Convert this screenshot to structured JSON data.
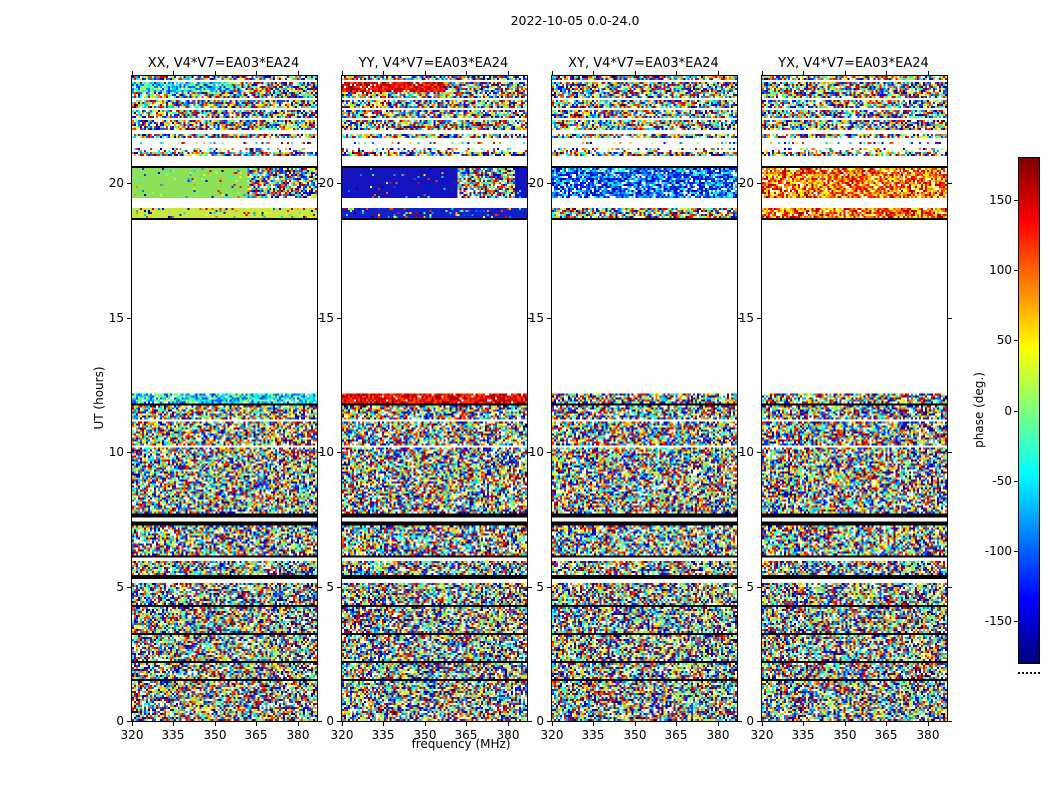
{
  "figure": {
    "title": "2022-10-05 0.0-24.0"
  },
  "chart_data": {
    "type": "heatmap",
    "panels": [
      {
        "title": "XX, V4*V7=EA03*EA24"
      },
      {
        "title": "YY, V4*V7=EA03*EA24"
      },
      {
        "title": "XY, V4*V7=EA03*EA24"
      },
      {
        "title": "YX, V4*V7=EA03*EA24"
      }
    ],
    "x": {
      "label": "frequency (MHz)",
      "range": [
        320,
        387
      ],
      "ticks": [
        320,
        335,
        350,
        365,
        380
      ]
    },
    "y": {
      "label": "UT (hours)",
      "range": [
        0,
        24
      ],
      "ticks": [
        0,
        5,
        10,
        15,
        20
      ]
    },
    "colorbar": {
      "label": "phase (deg.)",
      "range": [
        -180,
        180
      ],
      "ticks": [
        150,
        100,
        50,
        0,
        -50,
        -100,
        -150
      ],
      "colormap": "jet"
    },
    "grid": false,
    "bands": [
      {
        "t0": 0.0,
        "t1": 1.45,
        "mode": "noise"
      },
      {
        "t0": 1.45,
        "t1": 1.53,
        "mode": "black"
      },
      {
        "t0": 1.53,
        "t1": 2.15,
        "mode": "noise"
      },
      {
        "t0": 2.15,
        "t1": 2.23,
        "mode": "black"
      },
      {
        "t0": 2.23,
        "t1": 3.2,
        "mode": "noise"
      },
      {
        "t0": 3.2,
        "t1": 3.28,
        "mode": "black"
      },
      {
        "t0": 3.28,
        "t1": 4.22,
        "mode": "noise"
      },
      {
        "t0": 4.22,
        "t1": 4.3,
        "mode": "black"
      },
      {
        "t0": 4.3,
        "t1": 5.1,
        "mode": "noise"
      },
      {
        "t0": 5.1,
        "t1": 5.3,
        "mode": "white"
      },
      {
        "t0": 5.3,
        "t1": 5.42,
        "mode": "black"
      },
      {
        "t0": 5.42,
        "t1": 5.95,
        "mode": "noise"
      },
      {
        "t0": 5.95,
        "t1": 6.08,
        "mode": "white"
      },
      {
        "t0": 6.08,
        "t1": 6.18,
        "mode": "black"
      },
      {
        "t0": 6.18,
        "t1": 7.3,
        "mode": "noise"
      },
      {
        "t0": 7.3,
        "t1": 7.44,
        "mode": "black"
      },
      {
        "t0": 7.44,
        "t1": 7.58,
        "mode": "white"
      },
      {
        "t0": 7.58,
        "t1": 7.7,
        "mode": "black"
      },
      {
        "t0": 7.7,
        "t1": 10.15,
        "mode": "noise"
      },
      {
        "t0": 10.15,
        "t1": 10.22,
        "mode": "white"
      },
      {
        "t0": 10.22,
        "t1": 11.15,
        "mode": "noise"
      },
      {
        "t0": 11.15,
        "t1": 11.22,
        "mode": "white"
      },
      {
        "t0": 11.22,
        "t1": 11.78,
        "mode": "noise"
      },
      {
        "t0": 11.78,
        "t1": 11.84,
        "mode": "black"
      },
      {
        "t0": 11.84,
        "t1": 12.18,
        "mode": "per-panel",
        "panels": [
          {
            "mode": "tint",
            "tint": "cool-green",
            "density": 0.92
          },
          {
            "mode": "tint",
            "tint": "red",
            "density": 0.95
          },
          {
            "mode": "noise"
          },
          {
            "mode": "noise"
          }
        ]
      },
      {
        "t0": 12.18,
        "t1": 18.66,
        "mode": "white"
      },
      {
        "t0": 18.66,
        "t1": 18.74,
        "mode": "black"
      },
      {
        "t0": 18.74,
        "t1": 19.12,
        "mode": "per-panel",
        "panels": [
          {
            "mode": "solid",
            "color": "#c8e63c",
            "noiseAmt": 0.2
          },
          {
            "mode": "solid",
            "color": "#1420c8",
            "noiseAmt": 0.15
          },
          {
            "mode": "noise"
          },
          {
            "mode": "tint",
            "tint": "warm",
            "density": 0.9
          }
        ]
      },
      {
        "t0": 19.12,
        "t1": 19.46,
        "mode": "white"
      },
      {
        "t0": 19.46,
        "t1": 20.58,
        "mode": "per-panel",
        "panels": [
          {
            "segments": [
              {
                "f0": 0,
                "f1": 0.62,
                "mode": "solid",
                "color": "#8ce05a",
                "noiseAmt": 0.06
              },
              {
                "f0": 0.62,
                "f1": 1,
                "mode": "noise"
              }
            ]
          },
          {
            "segments": [
              {
                "f0": 0,
                "f1": 0.62,
                "mode": "solid",
                "color": "#1414be",
                "noiseAmt": 0.05
              },
              {
                "f0": 0.62,
                "f1": 0.94,
                "mode": "noise"
              },
              {
                "f0": 0.94,
                "f1": 1,
                "mode": "solid",
                "color": "#1414be",
                "noiseAmt": 0.05
              }
            ]
          },
          {
            "mode": "tint",
            "tint": "cool",
            "density": 0.85
          },
          {
            "mode": "tint",
            "tint": "warm",
            "density": 0.85
          }
        ]
      },
      {
        "t0": 20.58,
        "t1": 20.64,
        "mode": "black"
      },
      {
        "t0": 20.64,
        "t1": 21.0,
        "mode": "white"
      },
      {
        "t0": 21.0,
        "t1": 21.18,
        "mode": "noise"
      },
      {
        "t0": 21.18,
        "t1": 21.32,
        "mode": "sparse"
      },
      {
        "t0": 21.32,
        "t1": 21.45,
        "mode": "white"
      },
      {
        "t0": 21.45,
        "t1": 21.58,
        "mode": "sparse"
      },
      {
        "t0": 21.58,
        "t1": 21.72,
        "mode": "white"
      },
      {
        "t0": 21.72,
        "t1": 21.88,
        "mode": "noise"
      },
      {
        "t0": 21.88,
        "t1": 22.0,
        "mode": "white"
      },
      {
        "t0": 22.0,
        "t1": 22.34,
        "mode": "noise"
      },
      {
        "t0": 22.34,
        "t1": 22.44,
        "mode": "white"
      },
      {
        "t0": 22.44,
        "t1": 22.72,
        "mode": "noise"
      },
      {
        "t0": 22.72,
        "t1": 22.8,
        "mode": "white"
      },
      {
        "t0": 22.8,
        "t1": 23.08,
        "mode": "noise"
      },
      {
        "t0": 23.08,
        "t1": 23.16,
        "mode": "white"
      },
      {
        "t0": 23.16,
        "t1": 23.42,
        "mode": "noise"
      },
      {
        "t0": 23.42,
        "t1": 23.78,
        "mode": "per-panel",
        "panels": [
          {
            "segments": [
              {
                "f0": 0,
                "f1": 0.55,
                "mode": "tint",
                "tint": "cool-green",
                "density": 0.92
              },
              {
                "f0": 0.55,
                "f1": 1,
                "mode": "noise"
              }
            ]
          },
          {
            "segments": [
              {
                "f0": 0,
                "f1": 0.55,
                "mode": "tint",
                "tint": "red",
                "density": 0.95
              },
              {
                "f0": 0.55,
                "f1": 1,
                "mode": "noise"
              }
            ]
          },
          {
            "mode": "noise"
          },
          {
            "mode": "noise"
          }
        ]
      },
      {
        "t0": 23.78,
        "t1": 23.84,
        "mode": "white"
      },
      {
        "t0": 23.84,
        "t1": 24.0,
        "mode": "noise"
      }
    ]
  }
}
